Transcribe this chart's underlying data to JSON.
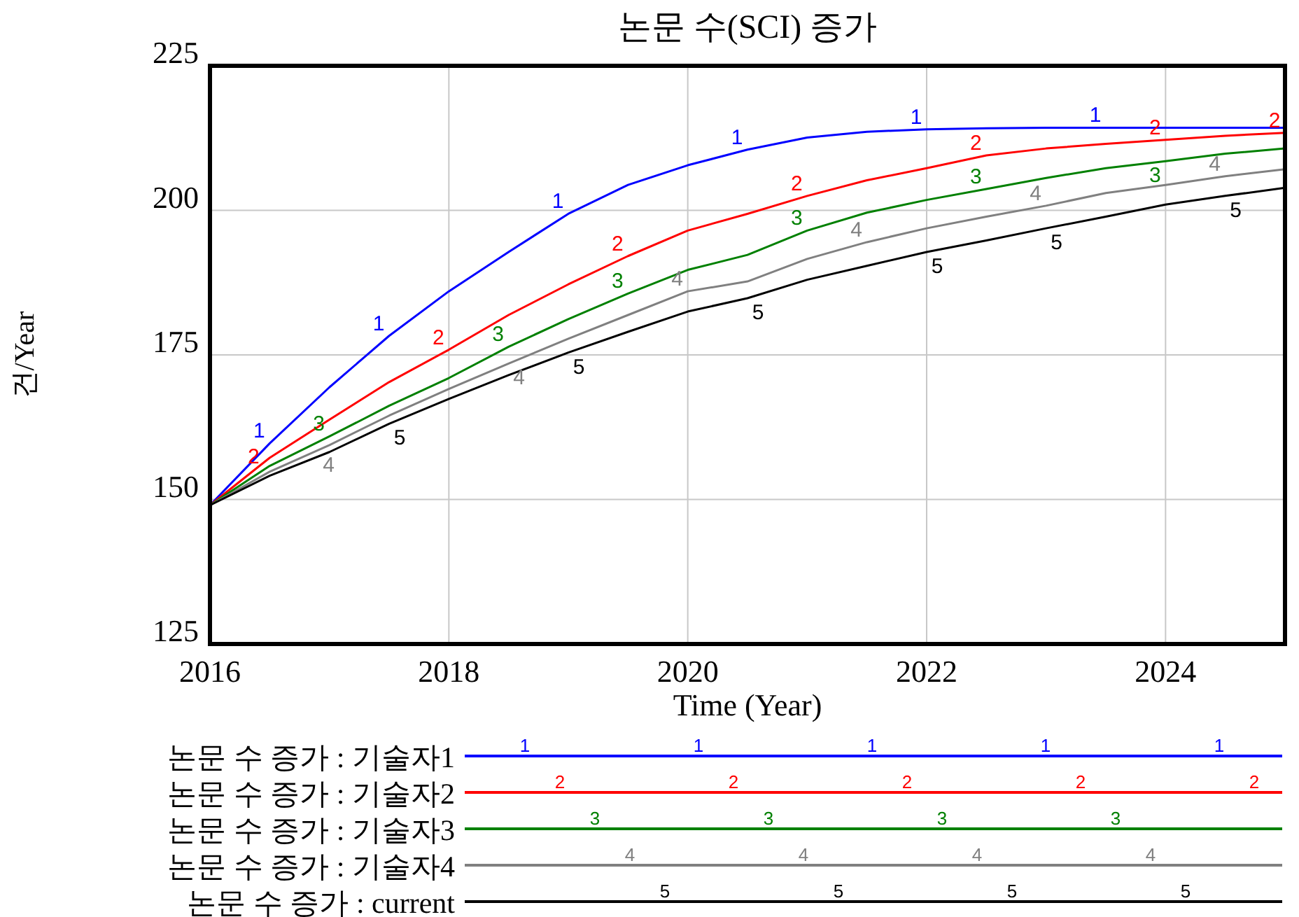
{
  "chart_data": {
    "type": "line",
    "title": "논문 수(SCI) 증가",
    "xlabel": "Time (Year)",
    "ylabel": "건/Year",
    "x": [
      2016,
      2016.5,
      2017,
      2017.5,
      2018,
      2018.5,
      2019,
      2019.5,
      2020,
      2020.5,
      2021,
      2021.5,
      2022,
      2022.5,
      2023,
      2023.5,
      2024,
      2024.5,
      2025
    ],
    "series": [
      {
        "name": "논문 수 증가 : 기술자1",
        "color": "#0000ff",
        "values": [
          149,
          159.7,
          169.4,
          178.3,
          186,
          192.8,
          199.4,
          204.4,
          207.8,
          210.5,
          212.6,
          213.6,
          214,
          214.2,
          214.3,
          214.3,
          214.3,
          214.3,
          214.3
        ]
      },
      {
        "name": "논문 수 증가 : 기술자2",
        "color": "#ff0000",
        "values": [
          149,
          157.2,
          163.8,
          170.3,
          175.9,
          181.9,
          187.2,
          192.1,
          196.5,
          199.4,
          202.5,
          205.2,
          207.3,
          209.5,
          210.7,
          211.5,
          212.2,
          212.9,
          213.4
        ]
      },
      {
        "name": "논문 수 증가 : 기술자3",
        "color": "#008000",
        "values": [
          149,
          155.8,
          160.9,
          166.2,
          171,
          176.4,
          181.2,
          185.6,
          189.7,
          192.3,
          196.5,
          199.6,
          201.8,
          203.7,
          205.6,
          207.3,
          208.5,
          209.8,
          210.7
        ]
      },
      {
        "name": "논문 수 증가 : 기술자4",
        "color": "#808080",
        "values": [
          149,
          154.8,
          159.4,
          164.5,
          169.1,
          173.5,
          177.8,
          181.9,
          186,
          187.7,
          191.6,
          194.5,
          196.9,
          198.9,
          200.8,
          203,
          204.4,
          205.9,
          207.1
        ]
      },
      {
        "name": "논문 수 증가 : current",
        "color": "#000000",
        "values": [
          149,
          154.1,
          158.2,
          163.1,
          167.4,
          171.5,
          175.4,
          179,
          182.5,
          184.8,
          188,
          190.4,
          192.8,
          194.8,
          196.9,
          198.9,
          201,
          202.5,
          203.9
        ]
      }
    ],
    "annotations": [
      {
        "text": "1",
        "x": 2016.5,
        "y": 159.7
      },
      {
        "text": "1",
        "x": 2017.5,
        "y": 178.3
      },
      {
        "text": "1",
        "x": 2019,
        "y": 199.4
      },
      {
        "text": "1",
        "x": 2020.5,
        "y": 210.5
      },
      {
        "text": "1",
        "x": 2022,
        "y": 214
      },
      {
        "text": "1",
        "x": 2023.5,
        "y": 214.3
      },
      {
        "text": "2",
        "x": 2016.5,
        "y": 157.2
      },
      {
        "text": "2",
        "x": 2018,
        "y": 175.9
      },
      {
        "text": "2",
        "x": 2019.5,
        "y": 192.1
      },
      {
        "text": "2",
        "x": 2021,
        "y": 202.5
      },
      {
        "text": "2",
        "x": 2022.5,
        "y": 209.5
      },
      {
        "text": "2",
        "x": 2024,
        "y": 212.2
      },
      {
        "text": "2",
        "x": 2025,
        "y": 213.4
      },
      {
        "text": "3",
        "x": 2017,
        "y": 160.9
      },
      {
        "text": "3",
        "x": 2018.5,
        "y": 176.4
      },
      {
        "text": "3",
        "x": 2019.5,
        "y": 185.6
      },
      {
        "text": "3",
        "x": 2021,
        "y": 196.5
      },
      {
        "text": "3",
        "x": 2022.5,
        "y": 203.7
      },
      {
        "text": "3",
        "x": 2024,
        "y": 208.5
      },
      {
        "text": "4",
        "x": 2017,
        "y": 159.4
      },
      {
        "text": "4",
        "x": 2018.5,
        "y": 173.5
      },
      {
        "text": "4",
        "x": 2020,
        "y": 186
      },
      {
        "text": "4",
        "x": 2021.5,
        "y": 194.5
      },
      {
        "text": "4",
        "x": 2023,
        "y": 200.8
      },
      {
        "text": "4",
        "x": 2024.5,
        "y": 205.9
      },
      {
        "text": "5",
        "x": 2017.5,
        "y": 163.1
      },
      {
        "text": "5",
        "x": 2019,
        "y": 175.4
      },
      {
        "text": "5",
        "x": 2020.5,
        "y": 184.8
      },
      {
        "text": "5",
        "x": 2022,
        "y": 192.8
      },
      {
        "text": "5",
        "x": 2023,
        "y": 196.9
      },
      {
        "text": "5",
        "x": 2024.5,
        "y": 202.5
      }
    ],
    "xlim": [
      2016,
      2025
    ],
    "xticks": [
      2016,
      2018,
      2020,
      2022,
      2024
    ],
    "ylim": [
      125,
      225
    ],
    "yticks": [
      125,
      150,
      175,
      200,
      225
    ],
    "grid": true,
    "legend": "bottom"
  }
}
